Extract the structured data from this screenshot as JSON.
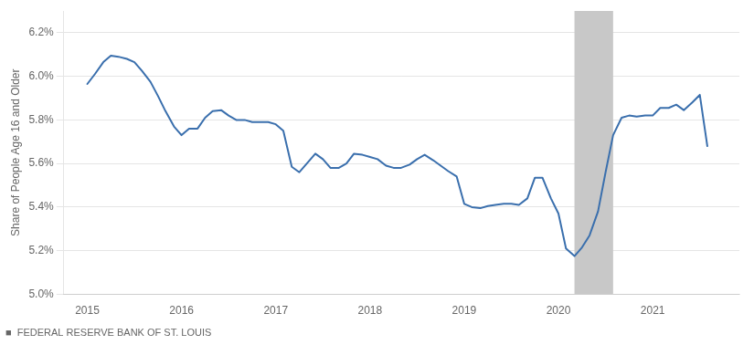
{
  "chart_data": {
    "type": "line",
    "ylabel": "Share of People Age 16 and Older",
    "footer": "■  FEDERAL RESERVE BANK OF ST. LOUIS",
    "color": "#3a6fad",
    "grid": "y",
    "xlim": [
      2014.75,
      2021.92
    ],
    "xticks": [
      2015,
      2016,
      2017,
      2018,
      2019,
      2020,
      2021
    ],
    "ylim": [
      0.05,
      0.063
    ],
    "yticks": [
      {
        "value": 0.05,
        "label": "5.0%"
      },
      {
        "value": 0.052,
        "label": "5.2%"
      },
      {
        "value": 0.054,
        "label": "5.4%"
      },
      {
        "value": 0.056,
        "label": "5.6%"
      },
      {
        "value": 0.058,
        "label": "5.8%"
      },
      {
        "value": 0.06,
        "label": "6.0%"
      },
      {
        "value": 0.062,
        "label": "6.2%"
      }
    ],
    "shading": [
      {
        "x0": 2020.17,
        "x1": 2020.58,
        "color": "#c8c8c8"
      }
    ],
    "x": [
      2015.0,
      2015.08,
      2015.17,
      2015.25,
      2015.33,
      2015.42,
      2015.5,
      2015.58,
      2015.67,
      2015.75,
      2015.83,
      2015.92,
      2016.0,
      2016.08,
      2016.17,
      2016.25,
      2016.33,
      2016.42,
      2016.5,
      2016.58,
      2016.67,
      2016.75,
      2016.83,
      2016.92,
      2017.0,
      2017.08,
      2017.17,
      2017.25,
      2017.33,
      2017.42,
      2017.5,
      2017.58,
      2017.67,
      2017.75,
      2017.83,
      2017.92,
      2018.0,
      2018.08,
      2018.17,
      2018.25,
      2018.33,
      2018.42,
      2018.5,
      2018.58,
      2018.67,
      2018.75,
      2018.83,
      2018.92,
      2019.0,
      2019.08,
      2019.17,
      2019.25,
      2019.33,
      2019.42,
      2019.5,
      2019.58,
      2019.67,
      2019.75,
      2019.83,
      2019.92,
      2020.0,
      2020.08,
      2020.17,
      2020.25,
      2020.33,
      2020.42,
      2020.5,
      2020.58,
      2020.67,
      2020.75,
      2020.83,
      2020.92,
      2021.0,
      2021.08,
      2021.17,
      2021.25,
      2021.33,
      2021.42,
      2021.5,
      2021.58
    ],
    "values": [
      0.05965,
      0.0601,
      0.06065,
      0.06095,
      0.0609,
      0.0608,
      0.06065,
      0.06025,
      0.05975,
      0.0591,
      0.0584,
      0.0577,
      0.0573,
      0.0576,
      0.0576,
      0.0581,
      0.0584,
      0.05845,
      0.0582,
      0.058,
      0.058,
      0.0579,
      0.0579,
      0.0579,
      0.0578,
      0.0575,
      0.05585,
      0.0556,
      0.056,
      0.05645,
      0.0562,
      0.0558,
      0.0558,
      0.056,
      0.05645,
      0.0564,
      0.0563,
      0.0562,
      0.0559,
      0.0558,
      0.0558,
      0.05595,
      0.0562,
      0.0564,
      0.05615,
      0.0559,
      0.05565,
      0.0554,
      0.05415,
      0.054,
      0.05395,
      0.05405,
      0.0541,
      0.05415,
      0.05415,
      0.0541,
      0.0544,
      0.05535,
      0.05535,
      0.0544,
      0.0537,
      0.0521,
      0.05175,
      0.05215,
      0.0527,
      0.0538,
      0.0556,
      0.0573,
      0.0581,
      0.0582,
      0.05815,
      0.0582,
      0.0582,
      0.05855,
      0.05855,
      0.0587,
      0.05845,
      0.0588,
      0.05915,
      0.0568
    ]
  }
}
